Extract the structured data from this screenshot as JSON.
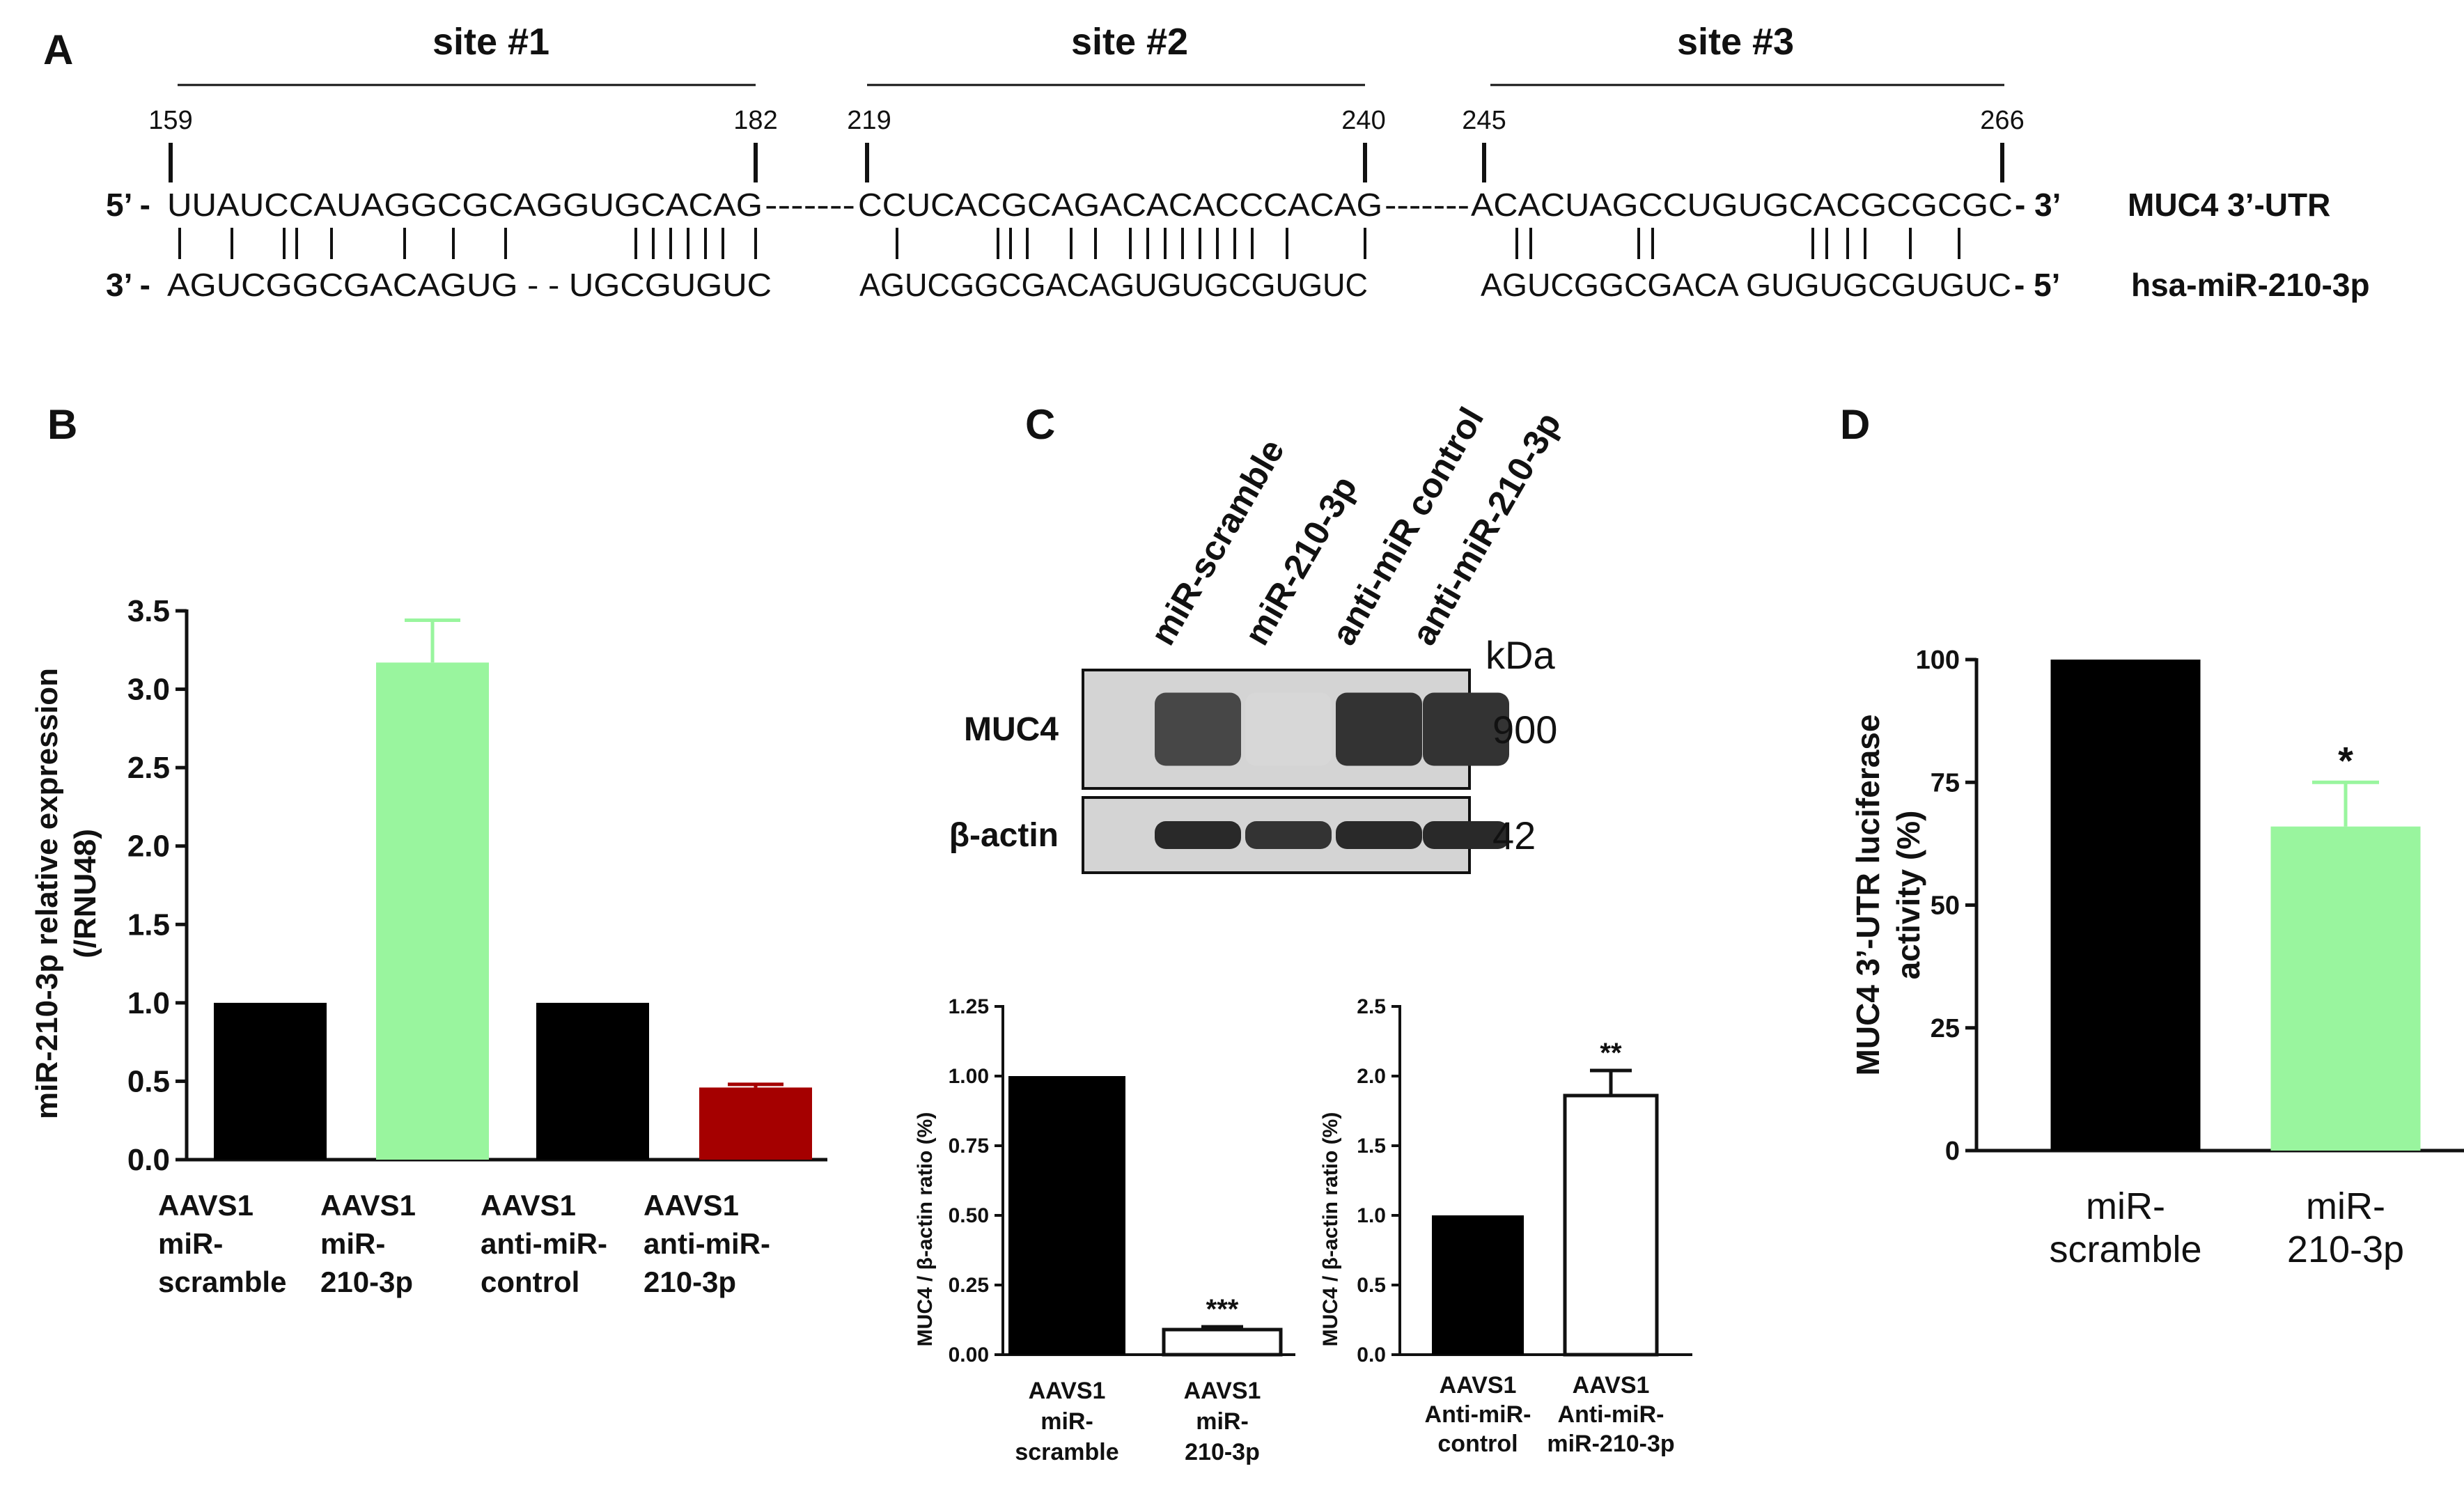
{
  "panel_labels": {
    "a": "A",
    "b": "B",
    "c": "C",
    "d": "D"
  },
  "panel_a": {
    "sites": [
      {
        "label": "site #1",
        "start": "159",
        "end": "182",
        "mrna": "UUAUCCAUAGGCGCAGGUGCACAG",
        "mirna": "AGUCGGCGACAGUG - - UGCGUGUC"
      },
      {
        "label": "site #2",
        "start": "219",
        "end": "240",
        "mrna": "CCUCACGCAGACACACCCACAG",
        "mirna": "AGUCGGCGACAGUGUGCGUGUC"
      },
      {
        "label": "site #3",
        "start": "245",
        "end": "266",
        "mrna": "ACACUAGCCUGUGCACGCGCGC",
        "mirna": "AGUCGGCGACA GUGUGCGUGUC"
      }
    ],
    "mrna_prime_left": "5’ -",
    "mrna_prime_right": "- 3’",
    "mirna_prime_left": "3’ -",
    "mirna_prime_right": "- 5’",
    "linker": "-------",
    "mrna_name": "MUC4 3’-UTR",
    "mirna_name": "hsa-miR-210-3p"
  },
  "panel_c_blot": {
    "lanes": [
      "miR-scramble",
      "miR-210-3p",
      "anti-miR control",
      "anti-miR-210-3p"
    ],
    "unit": "kDa",
    "rows": [
      {
        "label": "MUC4",
        "size": "900",
        "intensity": [
          0.75,
          0.05,
          0.85,
          0.85
        ]
      },
      {
        "label": "β-actin",
        "size": "42",
        "intensity": [
          0.9,
          0.85,
          0.9,
          0.9
        ]
      }
    ]
  },
  "chart_data": [
    {
      "id": "B",
      "type": "bar",
      "ylabel_line1": "miR-210-3p relative expression",
      "ylabel_line2": "(/RNU48)",
      "ylim": [
        0,
        3.5
      ],
      "yticks": [
        "0.0",
        "0.5",
        "1.0",
        "1.5",
        "2.0",
        "2.5",
        "3.0",
        "3.5"
      ],
      "categories": [
        [
          "AAVS1",
          "miR-",
          "scramble"
        ],
        [
          "AAVS1",
          "miR-",
          "210-3p"
        ],
        [
          "AAVS1",
          "anti-miR-",
          "control"
        ],
        [
          "AAVS1",
          "anti-miR-",
          "210-3p"
        ]
      ],
      "values": [
        1.0,
        3.17,
        1.0,
        0.46
      ],
      "errors": [
        0,
        0.27,
        0,
        0.02
      ],
      "colors": [
        "#000000",
        "#99f59e",
        "#000000",
        "#a50000"
      ]
    },
    {
      "id": "C1",
      "type": "bar",
      "ylabel": "MUC4 / β-actin ratio (%)",
      "ylim": [
        0,
        1.25
      ],
      "yticks": [
        "0.00",
        "0.25",
        "0.50",
        "0.75",
        "1.00",
        "1.25"
      ],
      "categories": [
        [
          "AAVS1",
          "miR-",
          "scramble"
        ],
        [
          "AAVS1",
          "miR-",
          "210-3p"
        ]
      ],
      "values": [
        1.0,
        0.09
      ],
      "errors": [
        0,
        0.01
      ],
      "significance": [
        "",
        "***"
      ],
      "colors": [
        "#000000",
        "#ffffff"
      ]
    },
    {
      "id": "C2",
      "type": "bar",
      "ylabel": "MUC4 / β-actin ratio (%)",
      "ylim": [
        0,
        2.5
      ],
      "yticks": [
        "0.0",
        "0.5",
        "1.0",
        "1.5",
        "2.0",
        "2.5"
      ],
      "categories": [
        [
          "AAVS1",
          "Anti-miR-",
          "control"
        ],
        [
          "AAVS1",
          "Anti-miR-",
          "miR-210-3p"
        ]
      ],
      "values": [
        1.0,
        1.86
      ],
      "errors": [
        0,
        0.18
      ],
      "significance": [
        "",
        "**"
      ],
      "colors": [
        "#000000",
        "#ffffff"
      ]
    },
    {
      "id": "D",
      "type": "bar",
      "ylabel_line1": "MUC4 3’-UTR luciferase",
      "ylabel_line2": "activity (%)",
      "ylim": [
        0,
        100
      ],
      "yticks": [
        "0",
        "25",
        "50",
        "75",
        "100"
      ],
      "categories": [
        [
          "miR-",
          "scramble"
        ],
        [
          "miR-",
          "210-3p"
        ]
      ],
      "values": [
        100,
        66
      ],
      "errors": [
        0,
        9
      ],
      "significance": [
        "",
        "*"
      ],
      "colors": [
        "#000000",
        "#99f59e"
      ]
    }
  ]
}
